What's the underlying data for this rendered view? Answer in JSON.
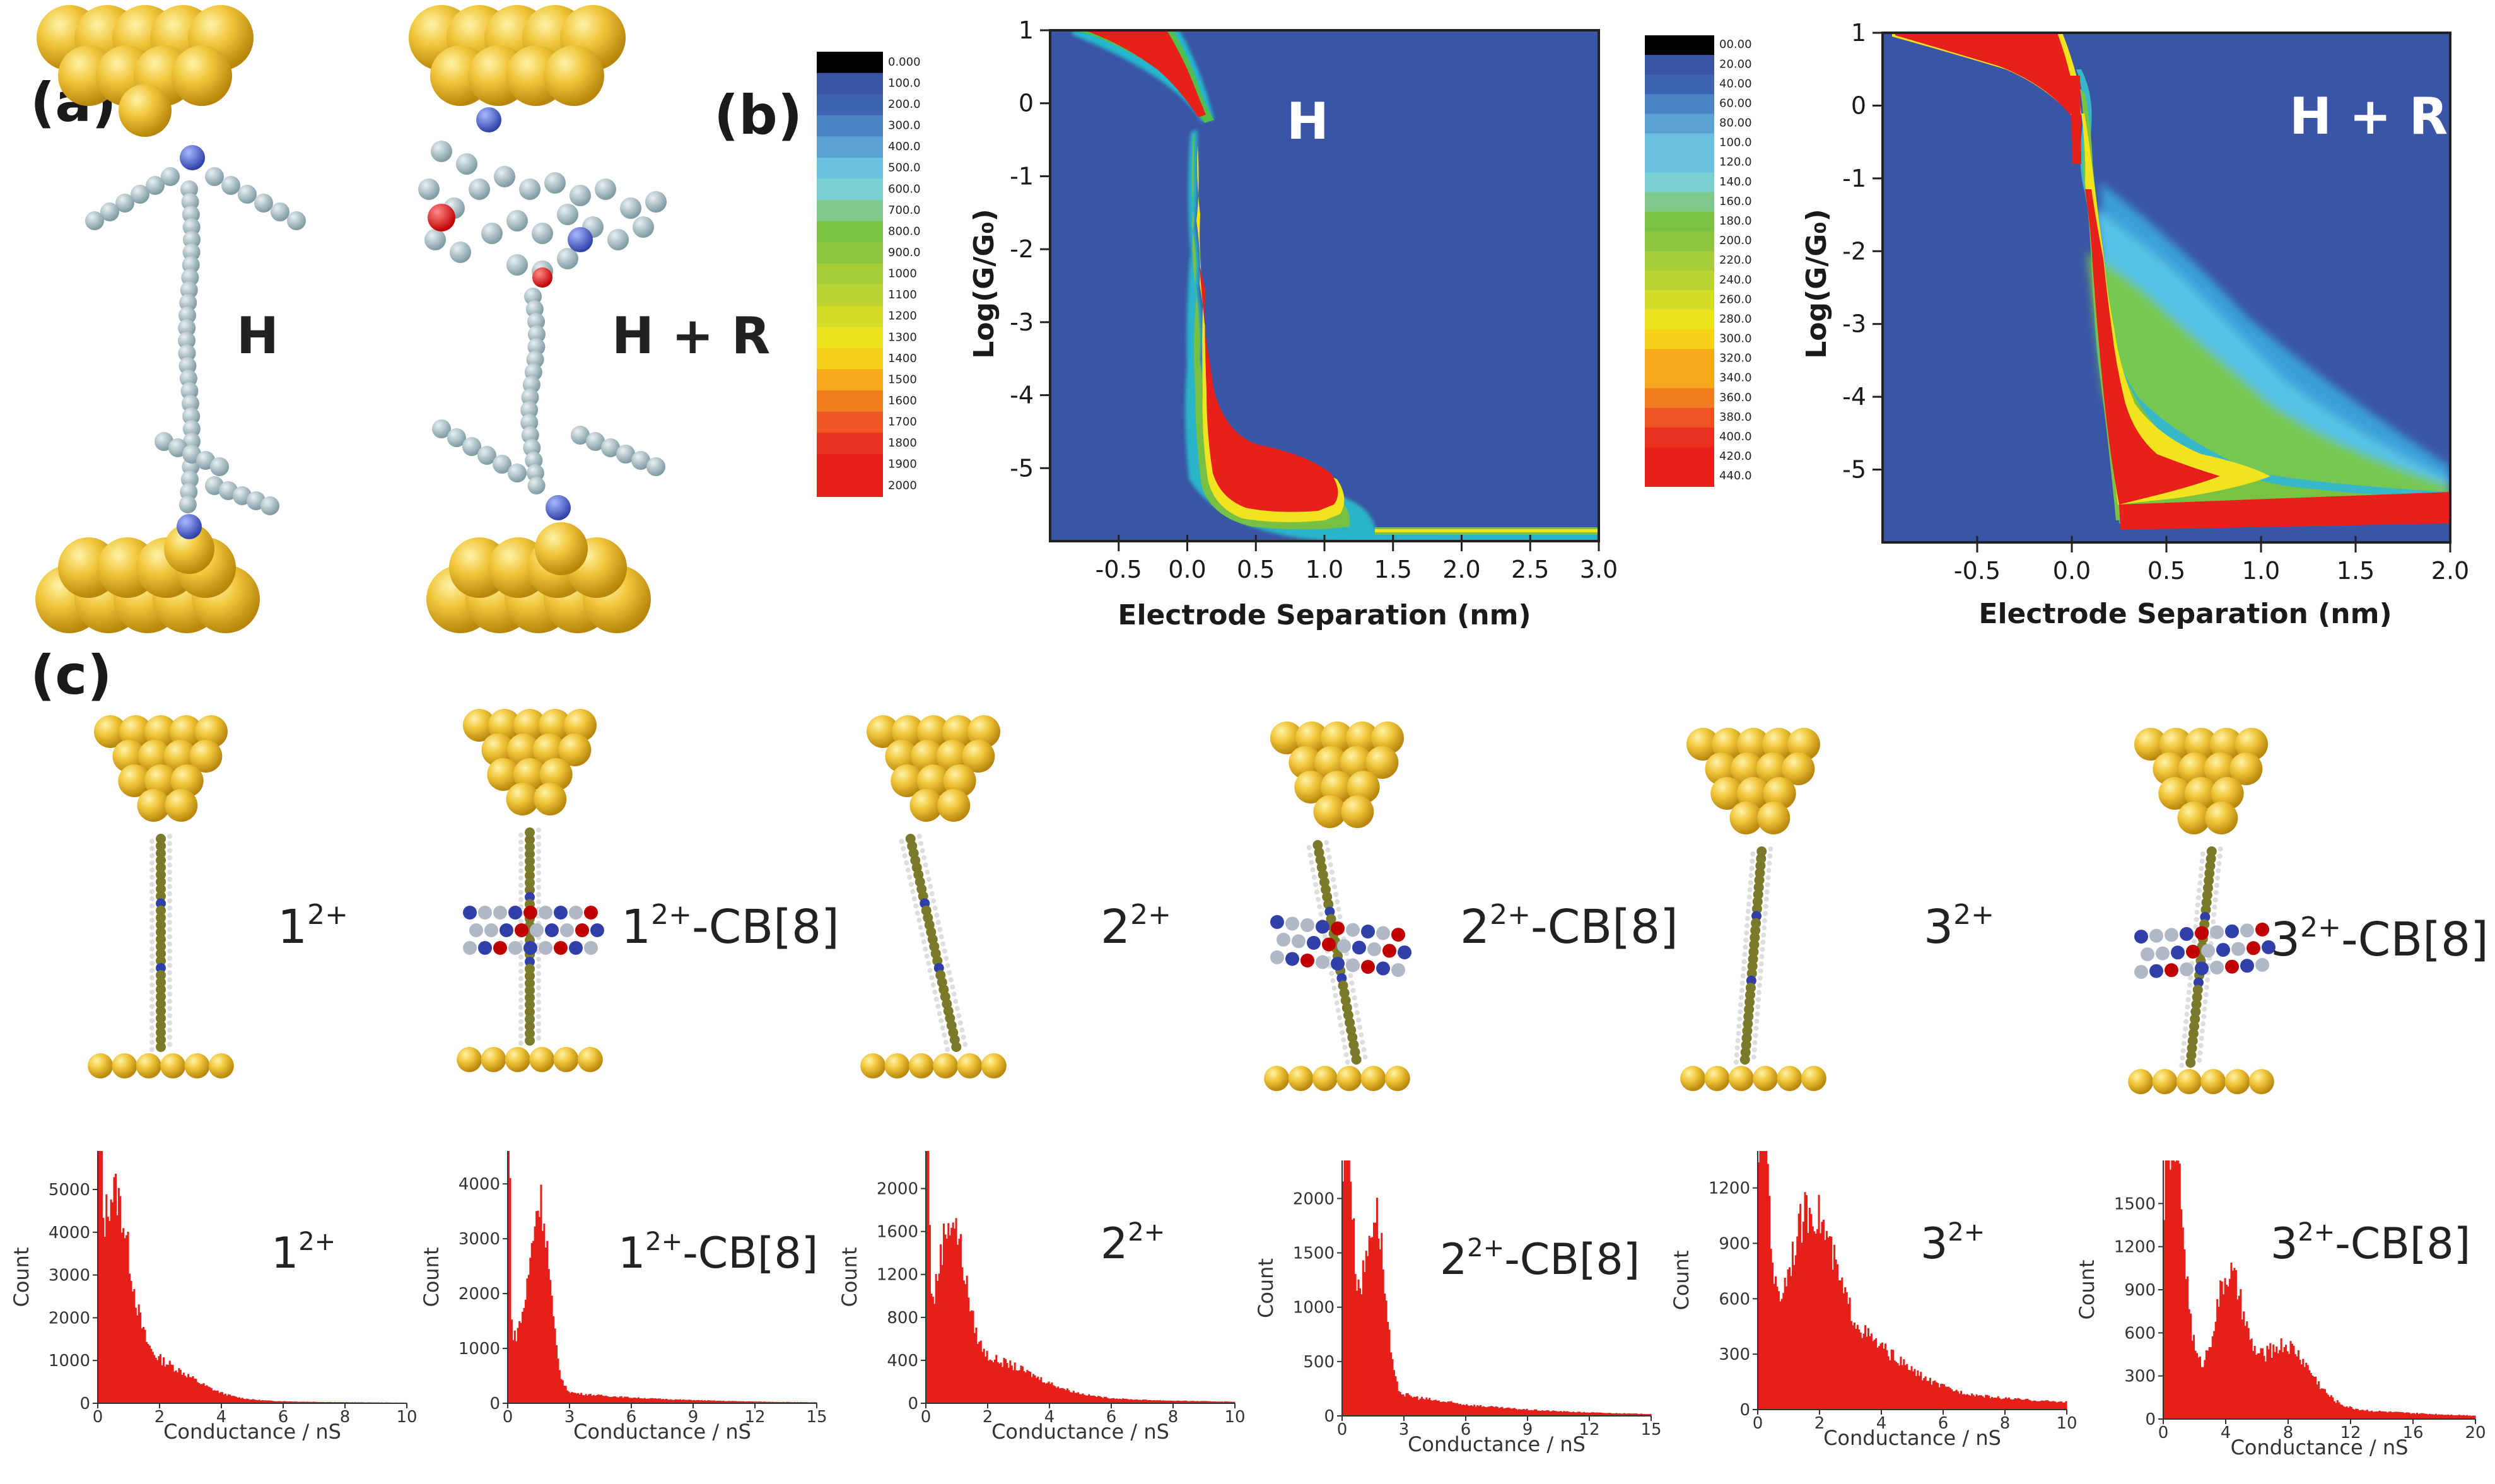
{
  "panel_labels": {
    "a": "(a)",
    "b": "(b)",
    "c": "(c)"
  },
  "panel_a": {
    "label_h": "H",
    "label_hr": "H + R"
  },
  "colorbar1": {
    "ticks": [
      "0.000",
      "100.0",
      "200.0",
      "300.0",
      "400.0",
      "500.0",
      "600.0",
      "700.0",
      "800.0",
      "900.0",
      "1000",
      "1100",
      "1200",
      "1300",
      "1400",
      "1500",
      "1600",
      "1700",
      "1800",
      "1900",
      "2000"
    ]
  },
  "colorbar2": {
    "ticks": [
      "00.00",
      "20.00",
      "40.00",
      "60.00",
      "80.00",
      "100.0",
      "120.0",
      "140.0",
      "160.0",
      "180.0",
      "200.0",
      "220.0",
      "240.0",
      "260.0",
      "280.0",
      "300.0",
      "320.0",
      "340.0",
      "360.0",
      "380.0",
      "400.0",
      "420.0",
      "440.0"
    ]
  },
  "colors": {
    "high": "#e8201c",
    "background": "#3a55a5",
    "gold": "#e2b93b",
    "hist": "#e5201a"
  },
  "chart_data": [
    {
      "type": "heatmap",
      "id": "map-h",
      "label": "H",
      "xlabel": "Electrode Separation (nm)",
      "ylabel": "Log(G/G₀)",
      "xlim": [
        -1.0,
        3.0
      ],
      "ylim": [
        -6.0,
        1.0
      ],
      "xticks": [
        "-0.5",
        "0.0",
        "0.5",
        "1.0",
        "1.5",
        "2.0",
        "2.5",
        "3.0"
      ],
      "xtick_values": [
        -0.5,
        0.0,
        0.5,
        1.0,
        1.5,
        2.0,
        2.5,
        3.0
      ],
      "yticks": [
        "1",
        "0",
        "-1",
        "-2",
        "-3",
        "-4",
        "-5"
      ],
      "ytick_values": [
        1,
        0,
        -1,
        -2,
        -3,
        -4,
        -5
      ]
    },
    {
      "type": "heatmap",
      "id": "map-hr",
      "label": "H + R",
      "xlabel": "Electrode Separation (nm)",
      "ylabel": "Log(G/G₀)",
      "xlim": [
        -1.0,
        2.0
      ],
      "ylim": [
        -6.0,
        1.0
      ],
      "xticks": [
        "-0.5",
        "0.0",
        "0.5",
        "1.0",
        "1.5",
        "2.0"
      ],
      "xtick_values": [
        -0.5,
        0.0,
        0.5,
        1.0,
        1.5,
        2.0
      ],
      "yticks": [
        "1",
        "0",
        "-1",
        "-2",
        "-3",
        "-4",
        "-5"
      ],
      "ytick_values": [
        1,
        0,
        -1,
        -2,
        -3,
        -4,
        -5
      ]
    },
    {
      "type": "bar",
      "id": "hist1",
      "base": "1",
      "sup": "2+",
      "suffix": "",
      "xlabel": "Conductance / nS",
      "ylabel": "Count",
      "xlim": [
        0,
        10
      ],
      "ylim": [
        0,
        5900
      ],
      "xticks": [
        "0",
        "2",
        "4",
        "6",
        "8",
        "10"
      ],
      "xtick_values": [
        0,
        2,
        4,
        6,
        8,
        10
      ],
      "yticks": [
        "0",
        "1000",
        "2000",
        "3000",
        "4000",
        "5000"
      ],
      "ytick_values": [
        0,
        1000,
        2000,
        3000,
        4000,
        5000
      ],
      "peaks": [
        [
          0.05,
          5700,
          0.05
        ],
        [
          0.5,
          4100,
          0.5
        ],
        [
          1.6,
          900,
          1.3
        ]
      ],
      "tail": [
        250,
        3.5
      ]
    },
    {
      "type": "bar",
      "id": "hist2",
      "base": "1",
      "sup": "2+",
      "suffix": "-CB[8]",
      "xlabel": "Conductance / nS",
      "ylabel": "Count",
      "xlim": [
        0,
        15
      ],
      "ylim": [
        0,
        4600
      ],
      "xticks": [
        "0",
        "3",
        "6",
        "9",
        "12",
        "15"
      ],
      "xtick_values": [
        0,
        3,
        6,
        9,
        12,
        15
      ],
      "yticks": [
        "0",
        "1000",
        "2000",
        "3000",
        "4000"
      ],
      "ytick_values": [
        0,
        1000,
        2000,
        3000,
        4000
      ],
      "peaks": [
        [
          0.05,
          4400,
          0.07
        ],
        [
          1.6,
          3200,
          0.45
        ],
        [
          0.6,
          900,
          0.6
        ]
      ],
      "tail": [
        350,
        5
      ]
    },
    {
      "type": "bar",
      "id": "hist3",
      "base": "2",
      "sup": "2+",
      "suffix": "",
      "xlabel": "Conductance / nS",
      "ylabel": "Count",
      "xlim": [
        0,
        10
      ],
      "ylim": [
        0,
        2350
      ],
      "xticks": [
        "0",
        "2",
        "4",
        "6",
        "8",
        "10"
      ],
      "xtick_values": [
        0,
        2,
        4,
        6,
        8,
        10
      ],
      "yticks": [
        "0",
        "400",
        "800",
        "1200",
        "1600",
        "2000"
      ],
      "ytick_values": [
        0,
        400,
        800,
        1200,
        1600,
        2000
      ],
      "peaks": [
        [
          0.05,
          2250,
          0.06
        ],
        [
          0.8,
          1350,
          0.45
        ],
        [
          2.0,
          300,
          1.5
        ]
      ],
      "tail": [
        180,
        4
      ]
    },
    {
      "type": "bar",
      "id": "hist4",
      "base": "2",
      "sup": "2+",
      "suffix": "-CB[8]",
      "xlabel": "Conductance / nS",
      "ylabel": "Count",
      "xlim": [
        0,
        15
      ],
      "ylim": [
        0,
        2350
      ],
      "xticks": [
        "0",
        "3",
        "6",
        "9",
        "12",
        "15"
      ],
      "xtick_values": [
        0,
        3,
        6,
        9,
        12,
        15
      ],
      "yticks": [
        "0",
        "500",
        "1000",
        "1500",
        "2000"
      ],
      "ytick_values": [
        0,
        500,
        1000,
        1500,
        2000
      ],
      "peaks": [
        [
          0.2,
          2150,
          0.25
        ],
        [
          1.7,
          1400,
          0.4
        ],
        [
          0.9,
          700,
          0.5
        ]
      ],
      "tail": [
        350,
        5
      ]
    },
    {
      "type": "bar",
      "id": "hist5",
      "base": "3",
      "sup": "2+",
      "suffix": "",
      "xlabel": "Conductance / nS",
      "ylabel": "Count",
      "xlim": [
        0,
        10
      ],
      "ylim": [
        0,
        1400
      ],
      "xticks": [
        "0",
        "2",
        "4",
        "6",
        "8",
        "10"
      ],
      "xtick_values": [
        0,
        2,
        4,
        6,
        8,
        10
      ],
      "yticks": [
        "0",
        "300",
        "600",
        "900",
        "1200"
      ],
      "ytick_values": [
        0,
        300,
        600,
        900,
        1200
      ],
      "peaks": [
        [
          0.15,
          1300,
          0.2
        ],
        [
          1.7,
          700,
          0.7
        ],
        [
          3.0,
          250,
          1.5
        ]
      ],
      "tail": [
        300,
        5
      ]
    },
    {
      "type": "bar",
      "id": "hist6",
      "base": "3",
      "sup": "2+",
      "suffix": "-CB[8]",
      "xlabel": "Conductance / nS",
      "ylabel": "Count",
      "xlim": [
        0,
        20
      ],
      "ylim": [
        0,
        1800
      ],
      "xticks": [
        "0",
        "4",
        "8",
        "12",
        "16",
        "20"
      ],
      "xtick_values": [
        0,
        4,
        8,
        12,
        16,
        20
      ],
      "yticks": [
        "0",
        "300",
        "600",
        "900",
        "1200",
        "1500"
      ],
      "ytick_values": [
        0,
        300,
        600,
        900,
        1200,
        1500
      ],
      "peaks": [
        [
          0.6,
          1700,
          0.7
        ],
        [
          4.2,
          800,
          0.9
        ],
        [
          7.8,
          400,
          1.6
        ]
      ],
      "tail": [
        300,
        8
      ]
    }
  ],
  "molecules": [
    {
      "base": "1",
      "sup": "2+",
      "suffix": ""
    },
    {
      "base": "1",
      "sup": "2+",
      "suffix": "-CB[8]"
    },
    {
      "base": "2",
      "sup": "2+",
      "suffix": ""
    },
    {
      "base": "2",
      "sup": "2+",
      "suffix": "-CB[8]"
    },
    {
      "base": "3",
      "sup": "2+",
      "suffix": ""
    },
    {
      "base": "3",
      "sup": "2+",
      "suffix": "-CB[8]"
    }
  ]
}
